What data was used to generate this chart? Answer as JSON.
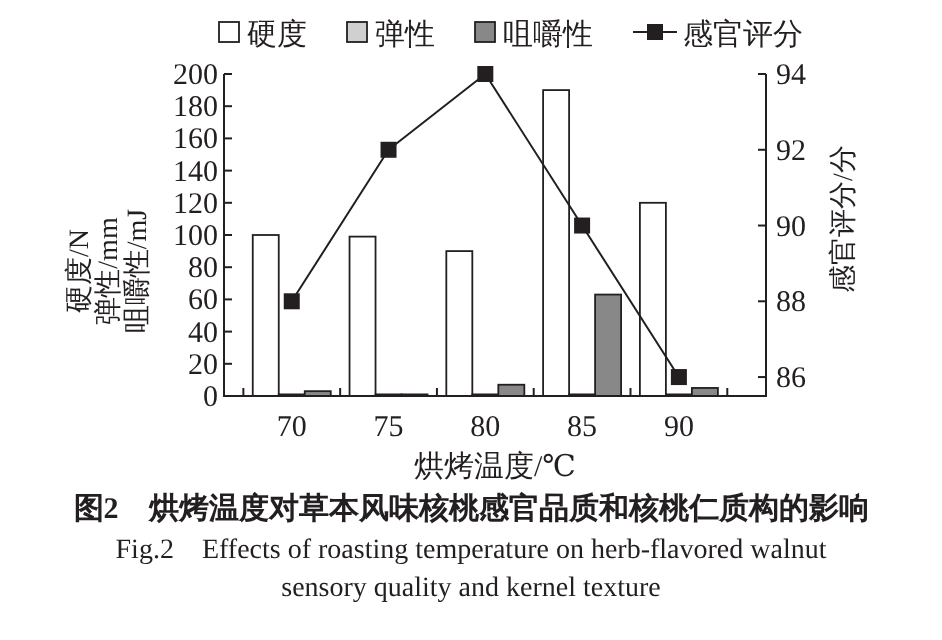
{
  "chart_data": {
    "type": "bar",
    "categories": [
      "70",
      "75",
      "80",
      "85",
      "90"
    ],
    "xlabel": "烘烤温度/℃",
    "ylabel": "硬度/N\n弹性/mm\n咀嚼性/mJ",
    "y2label": "感官评分/分",
    "ylim": [
      0,
      200
    ],
    "yticks": [
      0,
      20,
      40,
      60,
      80,
      100,
      120,
      140,
      160,
      180,
      200
    ],
    "y2lim": [
      85.5,
      94
    ],
    "y2ticks": [
      86,
      88,
      90,
      92,
      94
    ],
    "legend": "top",
    "marker": "square",
    "line_style": "solid",
    "grid": false,
    "series": [
      {
        "name": "硬度",
        "color": "#ffffff",
        "values": [
          100,
          99,
          90,
          190,
          120
        ]
      },
      {
        "name": "弹性",
        "color": "#d0d0d0",
        "values": [
          1,
          1,
          1,
          1,
          1
        ]
      },
      {
        "name": "咀嚼性",
        "color": "#888888",
        "values": [
          3,
          1,
          7,
          63,
          5
        ]
      },
      {
        "name": "感官评分",
        "type": "line",
        "axis": "y2",
        "color": "#231f20",
        "values": [
          88,
          92,
          94,
          90,
          86
        ]
      }
    ],
    "annotations": [
      "图2　烘烤温度对草本风味核桃感官品质和核桃仁质构的影响",
      "Fig.2　Effects of roasting temperature on herb-flavored walnut sensory quality and kernel texture"
    ]
  }
}
